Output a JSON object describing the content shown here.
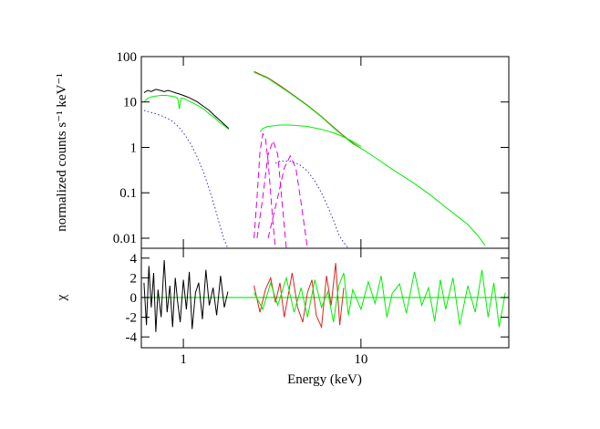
{
  "chart_data": [
    {
      "type": "line",
      "ylabel": "normalized counts s⁻¹ keV⁻¹",
      "log_x": true,
      "log_y": true,
      "xlim": [
        0.58,
        68
      ],
      "ylim": [
        0.006,
        100
      ],
      "yticks": [
        0.01,
        0.1,
        1,
        10,
        100
      ],
      "series": [
        {
          "color": "#000000",
          "style": "solid",
          "x": [
            0.6,
            0.63,
            0.66,
            0.7,
            0.74,
            0.78,
            0.82,
            0.86,
            0.9,
            0.95,
            1.0,
            1.05,
            1.1,
            1.2,
            1.3,
            1.4,
            1.5,
            1.6,
            1.7,
            1.8
          ],
          "values": [
            16,
            18,
            17,
            19,
            18,
            17,
            18,
            17,
            16,
            15,
            14,
            13,
            12,
            10,
            8,
            6.5,
            5,
            4,
            3.2,
            2.6
          ]
        },
        {
          "color": "#00ee00",
          "style": "solid",
          "x": [
            0.6,
            0.63,
            0.66,
            0.7,
            0.75,
            0.8,
            0.85,
            0.9,
            0.93,
            0.95,
            0.97,
            1.0,
            1.05,
            1.1,
            1.2,
            1.3,
            1.4,
            1.5,
            1.6,
            1.7,
            1.8
          ],
          "values": [
            10,
            12,
            13,
            13.5,
            14,
            14,
            13.5,
            13,
            12,
            7,
            12,
            12,
            11,
            10,
            8.5,
            7,
            5.5,
            4.5,
            3.5,
            3,
            2.5
          ]
        },
        {
          "color": "#3333cc",
          "style": "dotted",
          "x": [
            0.6,
            0.65,
            0.7,
            0.75,
            0.8,
            0.85,
            0.9,
            0.95,
            1.0,
            1.1,
            1.2,
            1.3,
            1.4,
            1.5,
            1.6,
            1.7,
            1.78
          ],
          "values": [
            6.5,
            6,
            5.5,
            5,
            4.5,
            4,
            3.3,
            2.7,
            2.1,
            1.2,
            0.6,
            0.28,
            0.12,
            0.05,
            0.02,
            0.009,
            0.006
          ]
        },
        {
          "color": "#dd2222",
          "style": "solid",
          "x": [
            2.5,
            3,
            3.5,
            4,
            5,
            6,
            7,
            8,
            9,
            10
          ],
          "values": [
            47,
            34,
            23,
            16,
            8.5,
            4.8,
            2.8,
            1.8,
            1.25,
            0.95
          ]
        },
        {
          "color": "#00ee00",
          "style": "solid",
          "x": [
            2.5,
            3,
            3.5,
            4,
            5,
            6,
            7,
            8,
            9,
            10,
            12,
            15,
            20,
            25,
            30,
            35,
            40,
            45,
            50
          ],
          "values": [
            45,
            33,
            22,
            15.5,
            8.3,
            4.7,
            2.7,
            1.75,
            1.2,
            0.95,
            0.6,
            0.33,
            0.16,
            0.085,
            0.048,
            0.03,
            0.02,
            0.012,
            0.007
          ]
        },
        {
          "color": "#00ee00",
          "style": "solid",
          "x": [
            2.7,
            2.8,
            3,
            3.5,
            4,
            5,
            6,
            7,
            8,
            9,
            10
          ],
          "values": [
            2.2,
            2.6,
            2.9,
            3.1,
            3.1,
            2.9,
            2.5,
            2.1,
            1.7,
            1.35,
            1.05
          ]
        },
        {
          "color": "#dd00dd",
          "style": "dashed",
          "x": [
            2.5,
            2.6,
            2.7,
            2.8,
            2.9,
            3.0,
            3.1,
            3.2,
            3.3
          ],
          "values": [
            0.01,
            0.08,
            0.8,
            2.0,
            1.6,
            0.5,
            0.1,
            0.02,
            0.006
          ]
        },
        {
          "color": "#dd00dd",
          "style": "dashed",
          "x": [
            2.6,
            2.8,
            3.0,
            3.2,
            3.4,
            3.6,
            3.8
          ],
          "values": [
            0.01,
            0.08,
            0.7,
            1.4,
            0.7,
            0.06,
            0.006
          ]
        },
        {
          "color": "#dd00dd",
          "style": "dashed",
          "x": [
            3.0,
            3.4,
            3.7,
            4.0,
            4.3,
            4.6,
            5.0
          ],
          "values": [
            0.01,
            0.08,
            0.35,
            0.65,
            0.35,
            0.06,
            0.006
          ]
        },
        {
          "color": "#3333cc",
          "style": "dotted",
          "x": [
            3.3,
            3.5,
            4,
            4.5,
            5,
            5.5,
            6,
            6.5,
            7,
            7.5,
            8,
            8.5
          ],
          "values": [
            0.45,
            0.5,
            0.5,
            0.42,
            0.3,
            0.18,
            0.1,
            0.05,
            0.025,
            0.012,
            0.008,
            0.006
          ]
        }
      ]
    },
    {
      "type": "line",
      "xlabel": "Energy (keV)",
      "ylabel": "χ",
      "log_x": true,
      "log_y": false,
      "xlim": [
        0.58,
        68
      ],
      "xticks": [
        1,
        10
      ],
      "ylim": [
        -5.1,
        5.0
      ],
      "yticks": [
        -4,
        -2,
        0,
        2,
        4
      ],
      "hline": 0,
      "hline_color": "#00ee00",
      "series": [
        {
          "color": "#000000",
          "style": "solid",
          "x": [
            0.6,
            0.62,
            0.64,
            0.66,
            0.68,
            0.7,
            0.72,
            0.75,
            0.78,
            0.81,
            0.84,
            0.87,
            0.9,
            0.93,
            0.96,
            1.0,
            1.04,
            1.08,
            1.12,
            1.17,
            1.22,
            1.28,
            1.34,
            1.4,
            1.47,
            1.54,
            1.62,
            1.7,
            1.78
          ],
          "values": [
            1.5,
            -2.8,
            3.2,
            -1,
            2.5,
            -3.5,
            0.8,
            -2,
            3.8,
            -1.5,
            1.2,
            -3,
            2,
            -0.5,
            -2.5,
            1.8,
            -1.2,
            2.6,
            -3.2,
            0.5,
            1.5,
            -2.2,
            2.8,
            -0.8,
            1,
            -1.8,
            2.2,
            -1,
            0.6
          ]
        },
        {
          "color": "#dd2222",
          "style": "solid",
          "x": [
            2.5,
            2.7,
            2.9,
            3.1,
            3.3,
            3.5,
            3.7,
            3.9,
            4.1,
            4.4,
            4.7,
            5,
            5.3,
            5.6,
            6,
            6.4,
            6.8,
            7.2,
            7.6,
            8
          ],
          "values": [
            1.2,
            -1.5,
            0.8,
            2,
            -0.5,
            1.5,
            -2,
            0.3,
            2.5,
            -1,
            -2.5,
            0.5,
            1.8,
            -1.8,
            -3,
            2.2,
            -0.8,
            3.5,
            -2.8,
            1
          ]
        },
        {
          "color": "#00ee00",
          "style": "solid",
          "x": [
            2.5,
            2.8,
            3.1,
            3.4,
            3.8,
            4.2,
            4.6,
            5,
            5.5,
            6,
            6.5,
            7,
            7.5,
            8,
            8.5,
            9,
            10,
            11,
            12,
            13,
            14,
            15,
            16.5,
            18,
            20,
            22,
            24,
            26,
            28,
            30,
            33,
            36,
            40,
            44,
            48,
            52,
            56,
            60,
            65
          ],
          "values": [
            0.5,
            -1.2,
            1.5,
            -0.8,
            2,
            -1.5,
            1,
            -2,
            1.8,
            -1,
            0.6,
            -2.5,
            1.2,
            2.5,
            -1.8,
            0.8,
            -1.2,
            1.6,
            -0.6,
            2.2,
            -2,
            0.4,
            1.4,
            -1.6,
            2.6,
            -0.8,
            1,
            -2.4,
            1.8,
            -1.2,
            2,
            -2.8,
            1.2,
            -1.5,
            2.8,
            -2,
            1.5,
            -3,
            0.5
          ]
        }
      ]
    }
  ]
}
